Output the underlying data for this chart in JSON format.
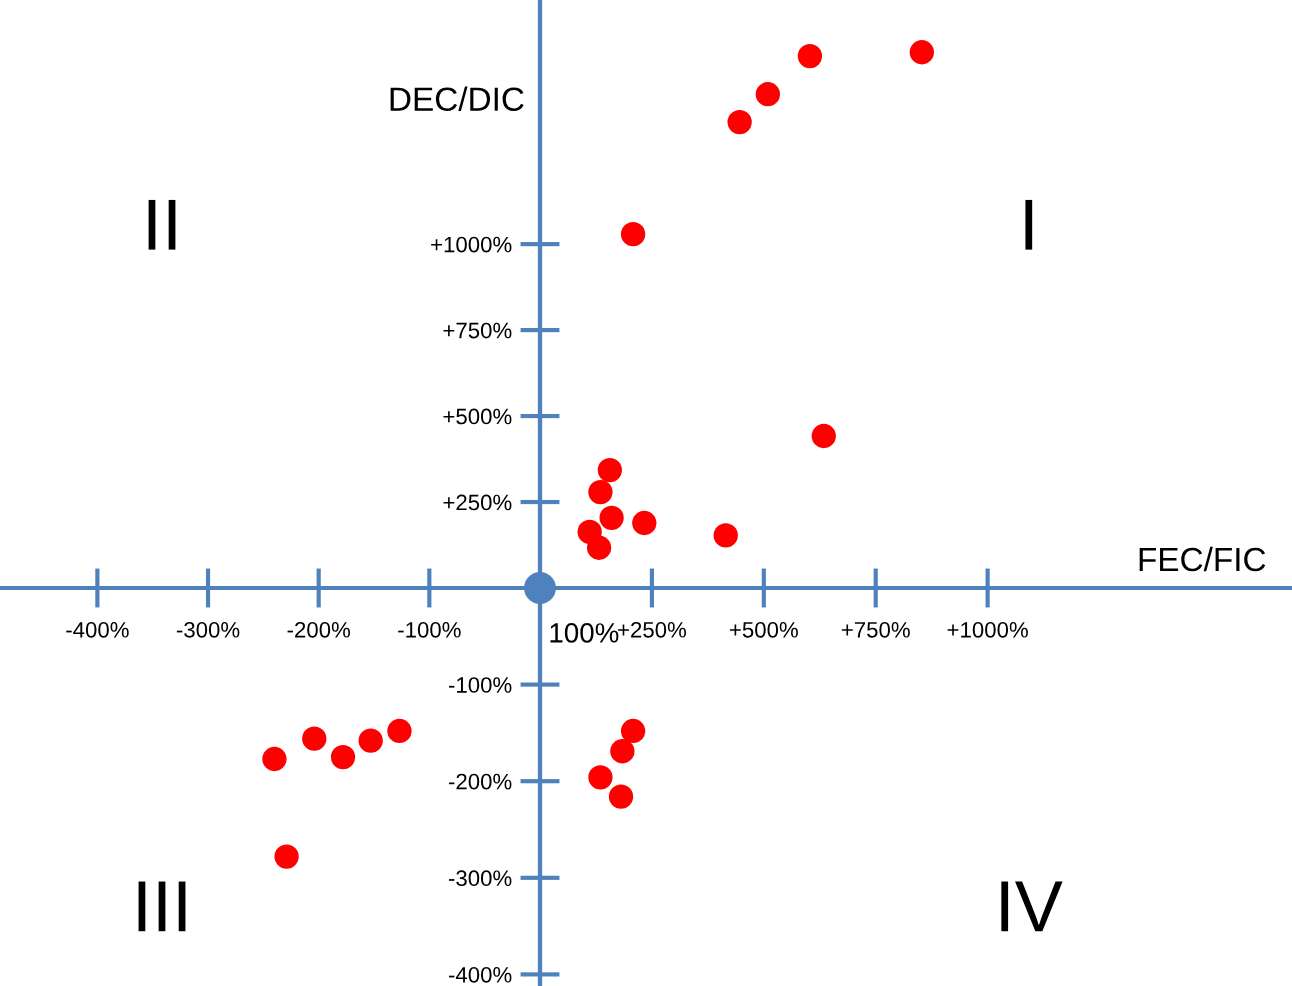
{
  "chart_data": [
    {
      "type": "scatter",
      "annotations": [
        "II"
      ],
      "marker": "circle",
      "grid": false,
      "tick_labels": "x",
      "xlim": [
        -488,
        0
      ],
      "ylim": [
        0,
        1710
      ],
      "xticks": [
        {
          "value": -400,
          "label": "-400%"
        },
        {
          "value": -300,
          "label": "-300%"
        },
        {
          "value": -200,
          "label": "-200%"
        },
        {
          "value": -100,
          "label": "-100%"
        }
      ],
      "yticks": [
        250,
        500,
        750,
        1000
      ]
    },
    {
      "type": "scatter",
      "xlabel": "FEC/FIC",
      "ylabel": "DEC/DIC",
      "annotations": [
        "I",
        {
          "text": "100%",
          "x": 0,
          "y": 0
        }
      ],
      "series": [
        {
          "color": "#ff0000",
          "x": [
            446,
            509,
            603,
            853,
            208,
            634,
            156,
            135,
            160,
            111,
            233,
            415,
            132
          ],
          "values": [
            1355,
            1436,
            1547,
            1558,
            1029,
            442,
            343,
            279,
            204,
            163,
            189,
            153,
            117
          ]
        },
        {
          "color": "#4f81bd",
          "x": [
            0
          ],
          "values": [
            0
          ]
        }
      ],
      "marker": "circle",
      "grid": false,
      "xlim": [
        0,
        1680
      ],
      "ylim": [
        0,
        1710
      ],
      "xticks": [
        {
          "value": 250,
          "label": "+250%"
        },
        {
          "value": 500,
          "label": "+500%"
        },
        {
          "value": 750,
          "label": "+750%"
        },
        {
          "value": 1000,
          "label": "+1000%"
        }
      ],
      "yticks": [
        {
          "value": 250,
          "label": "+250%"
        },
        {
          "value": 500,
          "label": "+500%"
        },
        {
          "value": 750,
          "label": "+750%"
        },
        {
          "value": 1000,
          "label": "+1000%"
        }
      ]
    },
    {
      "type": "scatter",
      "annotations": [
        "III"
      ],
      "tick_labels": false,
      "series": [
        {
          "color": "#ff0000",
          "x": [
            -240,
            -204,
            -178,
            -153,
            -127,
            -229
          ],
          "values": [
            -177,
            -156,
            -175,
            -158,
            -148,
            -278
          ]
        }
      ],
      "marker": "circle",
      "grid": false,
      "xlim": [
        -488,
        0
      ],
      "ylim": [
        -412,
        0
      ],
      "xticks": [
        -400,
        -300,
        -200,
        -100
      ],
      "yticks": [
        -400,
        -300,
        -200,
        -100
      ]
    },
    {
      "type": "scatter",
      "annotations": [
        "IV"
      ],
      "tick_labels": "y",
      "series": [
        {
          "color": "#ff0000",
          "x": [
            208,
            184,
            135,
            181
          ],
          "values": [
            -148,
            -169,
            -196,
            -216
          ]
        }
      ],
      "marker": "circle",
      "grid": false,
      "xlim": [
        0,
        1680
      ],
      "ylim": [
        -412,
        0
      ],
      "xticks": [
        250,
        500,
        750,
        1000
      ],
      "yticks": [
        {
          "value": -400,
          "label": "-400%"
        },
        {
          "value": -300,
          "label": "-300%"
        },
        {
          "value": -200,
          "label": "-200%"
        },
        {
          "value": -100,
          "label": "-100%"
        }
      ]
    }
  ]
}
